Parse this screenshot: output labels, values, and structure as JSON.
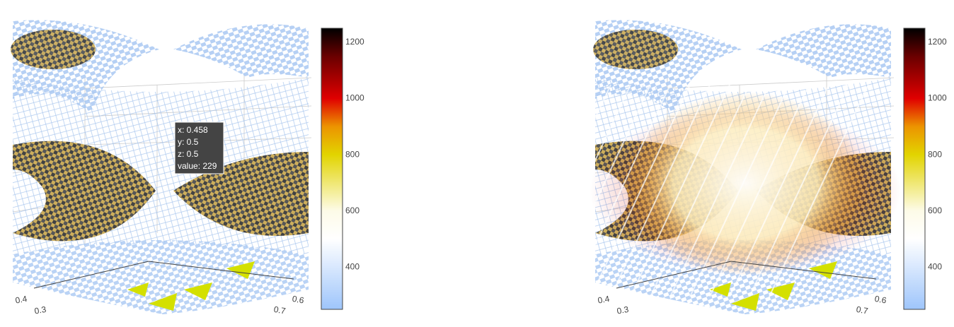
{
  "chart_data": [
    {
      "type": "volume",
      "colorbar": {
        "cmin": 250,
        "cmax": 1250,
        "ticks": [
          400,
          600,
          800,
          1000,
          1200
        ],
        "colorscale": [
          [
            0,
            "#9ec5fb"
          ],
          [
            0.25,
            "#ffffff"
          ],
          [
            0.35,
            "#fdfbe8"
          ],
          [
            0.55,
            "#e2d400"
          ],
          [
            0.65,
            "#ec9400"
          ],
          [
            0.75,
            "#e00000"
          ],
          [
            0.9,
            "#6a0000"
          ],
          [
            1,
            "#000000"
          ]
        ]
      },
      "xticks": [
        0.4,
        0.3
      ],
      "yticks": [
        0.6,
        0.7
      ],
      "hover": [
        "x: 0.458",
        "y: 0.5",
        "z: 0.5",
        "value: 229"
      ]
    },
    {
      "type": "volume",
      "colorbar": {
        "cmin": 250,
        "cmax": 1250,
        "ticks": [
          400,
          600,
          800,
          1000,
          1200
        ],
        "colorscale": [
          [
            0,
            "#9ec5fb"
          ],
          [
            0.25,
            "#ffffff"
          ],
          [
            0.35,
            "#fdfbe8"
          ],
          [
            0.55,
            "#e2d400"
          ],
          [
            0.65,
            "#ec9400"
          ],
          [
            0.75,
            "#e00000"
          ],
          [
            0.9,
            "#6a0000"
          ],
          [
            1,
            "#000000"
          ]
        ]
      },
      "xticks": [
        0.4,
        0.3
      ],
      "yticks": [
        0.6,
        0.7
      ]
    }
  ]
}
